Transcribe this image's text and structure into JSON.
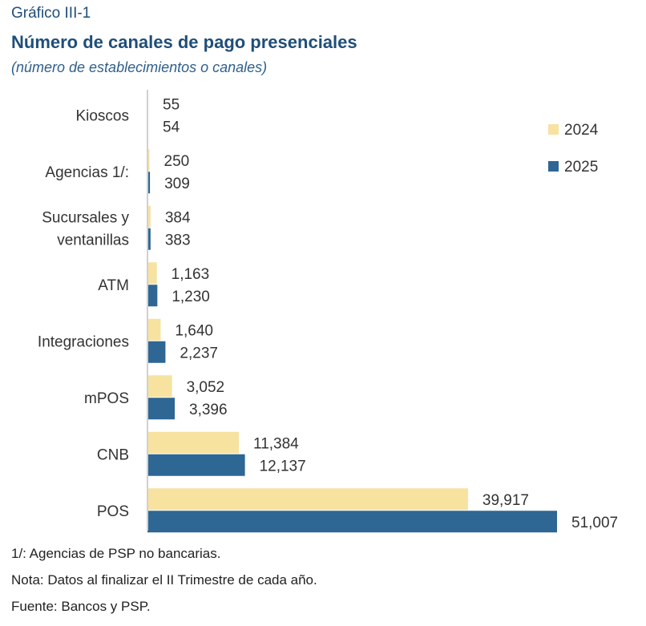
{
  "header": {
    "figure_label": "Gráfico III-1",
    "title": "Número de canales de pago presenciales",
    "subtitle": "(número de establecimientos o canales)"
  },
  "chart_data": {
    "type": "bar",
    "orientation": "horizontal",
    "categories": [
      "Kioscos",
      "Agencias 1/:",
      "Sucursales y ventanillas",
      "ATM",
      "Integraciones",
      "mPOS",
      "CNB",
      "POS"
    ],
    "category_lines": [
      [
        "Kioscos"
      ],
      [
        "Agencias 1/:"
      ],
      [
        "Sucursales y",
        "ventanillas"
      ],
      [
        "ATM"
      ],
      [
        "Integraciones"
      ],
      [
        "mPOS"
      ],
      [
        "CNB"
      ],
      [
        "POS"
      ]
    ],
    "series": [
      {
        "name": "2024",
        "color": "#f7e2a0",
        "values": [
          55,
          250,
          384,
          1163,
          1640,
          3052,
          11384,
          39917
        ],
        "labels": [
          "55",
          "250",
          "384",
          "1,163",
          "1,640",
          "3,052",
          "11,384",
          "39,917"
        ]
      },
      {
        "name": "2025",
        "color": "#2e6694",
        "values": [
          54,
          309,
          383,
          1230,
          2237,
          3396,
          12137,
          51007
        ],
        "labels": [
          "54",
          "309",
          "383",
          "1,230",
          "2,237",
          "3,396",
          "12,137",
          "51,007"
        ]
      }
    ],
    "xlim": [
      0,
      51007
    ],
    "legend_position": "top-right",
    "grid": false
  },
  "notes": [
    "1/: Agencias de PSP no bancarias.",
    "Nota: Datos al finalizar el II Trimestre de cada año.",
    "Fuente: Bancos y PSP."
  ]
}
